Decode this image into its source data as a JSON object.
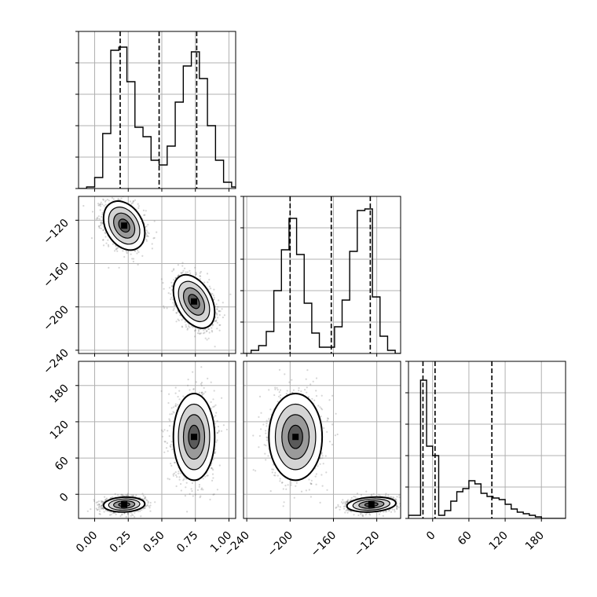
{
  "chart_data": {
    "type": "corner",
    "parameters": [
      {
        "name": "",
        "quantiles": [
          0.19,
          0.48,
          0.76
        ],
        "range": [
          -0.12,
          1.05
        ],
        "ticks": [
          0.0,
          0.25,
          0.5,
          0.75,
          1.0
        ],
        "tick_labels": [
          "0.00",
          "0.25",
          "0.50",
          "0.75",
          "1.00"
        ]
      },
      {
        "name": "",
        "quantiles": [
          -200,
          -162,
          -126
        ],
        "range": [
          -243,
          -98
        ],
        "ticks": [
          -240,
          -200,
          -160,
          -120
        ],
        "tick_labels": [
          "−240",
          "−200",
          "−160",
          "−120"
        ]
      },
      {
        "name": "",
        "quantiles": [
          -16,
          4,
          98
        ],
        "range": [
          -40,
          220
        ],
        "ticks": [
          0,
          60,
          120,
          180
        ],
        "tick_labels": [
          "0",
          "60",
          "120",
          "180"
        ]
      }
    ],
    "histograms": [
      {
        "parameter": 0,
        "bin_edges": [
          -0.12,
          -0.06,
          0.0,
          0.06,
          0.12,
          0.18,
          0.24,
          0.3,
          0.36,
          0.42,
          0.48,
          0.54,
          0.6,
          0.66,
          0.72,
          0.78,
          0.84,
          0.9,
          0.96,
          1.02,
          1.05
        ],
        "counts": [
          0.0,
          0.01,
          0.07,
          0.35,
          0.88,
          0.9,
          0.68,
          0.39,
          0.33,
          0.18,
          0.15,
          0.27,
          0.55,
          0.78,
          0.87,
          0.7,
          0.4,
          0.18,
          0.04,
          0.01
        ]
      },
      {
        "parameter": 1,
        "bin_edges": [
          -243,
          -236,
          -229,
          -222,
          -215,
          -208,
          -201,
          -194,
          -187,
          -180,
          -173,
          -166,
          -159,
          -152,
          -145,
          -138,
          -131,
          -124,
          -117,
          -110,
          -103,
          -98
        ],
        "counts": [
          0.0,
          0.02,
          0.05,
          0.14,
          0.4,
          0.66,
          0.86,
          0.63,
          0.32,
          0.13,
          0.04,
          0.04,
          0.17,
          0.34,
          0.65,
          0.91,
          0.92,
          0.36,
          0.11,
          0.02,
          0.0
        ]
      },
      {
        "parameter": 2,
        "bin_edges": [
          -40,
          -30,
          -20,
          -10,
          0,
          10,
          20,
          30,
          40,
          50,
          60,
          70,
          80,
          90,
          100,
          110,
          120,
          130,
          140,
          150,
          160,
          170,
          180,
          190,
          200,
          220
        ],
        "counts": [
          0.02,
          0.02,
          0.88,
          0.46,
          0.4,
          0.02,
          0.05,
          0.11,
          0.17,
          0.19,
          0.24,
          0.22,
          0.16,
          0.14,
          0.13,
          0.12,
          0.09,
          0.06,
          0.04,
          0.03,
          0.02,
          0.01,
          0.0,
          0.0,
          0.0
        ]
      }
    ],
    "clusters": [
      {
        "mean": [
          0.22,
          -125,
          -17
        ],
        "sd": [
          0.075,
          11,
          6
        ],
        "corr": {
          "0-1": -0.3,
          "0-2": 0.1,
          "1-2": 0.2
        }
      },
      {
        "mean": [
          0.74,
          -195,
          95
        ],
        "sd": [
          0.075,
          12,
          35
        ],
        "corr": {
          "0-1": -0.4,
          "0-2": 0.0,
          "1-2": 0.0
        }
      }
    ],
    "contour_levels": [
      "0.5",
      "1.0",
      "1.5",
      "2.0"
    ],
    "grid": true,
    "colors": {
      "density_dark": "#000000",
      "density_light": "#ffffff",
      "points": "#6a6a6a",
      "lines": "#000000",
      "grid": "#b0b0b0"
    }
  }
}
